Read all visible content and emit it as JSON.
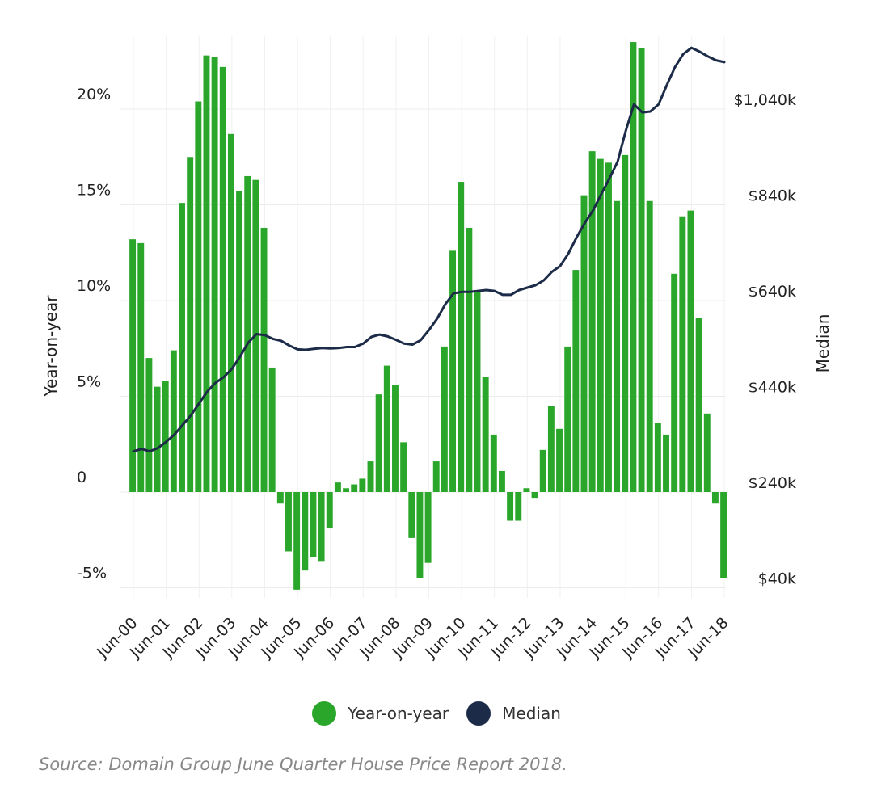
{
  "chart_data": {
    "type": "bar+line",
    "left_axis": {
      "title": "Year-on-year",
      "ticks": [
        {
          "value": 20,
          "label": "20%"
        },
        {
          "value": 15,
          "label": "15%"
        },
        {
          "value": 10,
          "label": "10%"
        },
        {
          "value": 5,
          "label": "5%"
        },
        {
          "value": 0,
          "label": "0"
        },
        {
          "value": -5,
          "label": "-5%"
        }
      ],
      "ylim": [
        -5.5,
        24
      ]
    },
    "right_axis": {
      "title": "Median",
      "ticks": [
        {
          "value": 1040,
          "label": "$1,040k"
        },
        {
          "value": 840,
          "label": "$840k"
        },
        {
          "value": 640,
          "label": "$640k"
        },
        {
          "value": 440,
          "label": "$440k"
        },
        {
          "value": 240,
          "label": "$240k"
        },
        {
          "value": 40,
          "label": "$40k"
        }
      ],
      "ylim": [
        -10,
        1172
      ]
    },
    "x_ticks": [
      "Jun-00",
      "Jun-01",
      "Jun-02",
      "Jun-03",
      "Jun-04",
      "Jun-05",
      "Jun-06",
      "Jun-07",
      "Jun-08",
      "Jun-09",
      "Jun-10",
      "Jun-11",
      "Jun-12",
      "Jun-13",
      "Jun-14",
      "Jun-15",
      "Jun-16",
      "Jun-17",
      "Jun-18"
    ],
    "series": [
      {
        "name": "Year-on-year",
        "kind": "bar",
        "color": "#2aa72a",
        "start_quarter_offset": -0.4,
        "values": [
          13.2,
          13.0,
          7.0,
          5.5,
          5.8,
          7.4,
          15.1,
          17.5,
          20.4,
          22.8,
          22.7,
          22.2,
          18.7,
          15.7,
          16.5,
          16.3,
          13.8,
          6.5,
          -0.6,
          -3.1,
          -5.1,
          -4.1,
          -3.4,
          -3.6,
          -1.9,
          0.5,
          0.2,
          0.4,
          0.7,
          1.6,
          5.1,
          6.6,
          5.6,
          2.6,
          -2.4,
          -4.5,
          -3.7,
          1.6,
          7.6,
          12.6,
          16.2,
          13.8,
          10.5,
          6.0,
          3.0,
          1.1,
          -1.5,
          -1.5,
          0.2,
          -0.3,
          2.2,
          4.5,
          3.3,
          7.6,
          11.6,
          15.5,
          17.8,
          17.4,
          17.2,
          15.2,
          17.6,
          23.5,
          23.2,
          15.2,
          3.6,
          3.0,
          11.4,
          14.4,
          14.7,
          9.1,
          4.1,
          -0.6,
          -4.5
        ]
      },
      {
        "name": "Median",
        "kind": "line",
        "color": "#1c2b48",
        "points": [
          [
            0.0,
            325
          ],
          [
            0.25,
            330
          ],
          [
            0.5,
            325
          ],
          [
            0.75,
            332
          ],
          [
            1.0,
            345
          ],
          [
            1.25,
            360
          ],
          [
            1.5,
            380
          ],
          [
            1.75,
            400
          ],
          [
            2.0,
            425
          ],
          [
            2.25,
            450
          ],
          [
            2.5,
            468
          ],
          [
            2.75,
            480
          ],
          [
            3.0,
            497
          ],
          [
            3.25,
            523
          ],
          [
            3.5,
            552
          ],
          [
            3.75,
            570
          ],
          [
            4.0,
            568
          ],
          [
            4.25,
            560
          ],
          [
            4.5,
            556
          ],
          [
            4.75,
            546
          ],
          [
            5.0,
            538
          ],
          [
            5.25,
            537
          ],
          [
            5.5,
            539
          ],
          [
            5.75,
            541
          ],
          [
            6.0,
            540
          ],
          [
            6.25,
            541
          ],
          [
            6.5,
            543
          ],
          [
            6.75,
            543
          ],
          [
            7.0,
            550
          ],
          [
            7.25,
            564
          ],
          [
            7.5,
            569
          ],
          [
            7.75,
            565
          ],
          [
            8.0,
            558
          ],
          [
            8.25,
            550
          ],
          [
            8.5,
            548
          ],
          [
            8.75,
            557
          ],
          [
            9.0,
            578
          ],
          [
            9.25,
            602
          ],
          [
            9.5,
            632
          ],
          [
            9.75,
            655
          ],
          [
            10.0,
            658
          ],
          [
            10.25,
            658
          ],
          [
            10.5,
            660
          ],
          [
            10.75,
            662
          ],
          [
            11.0,
            660
          ],
          [
            11.25,
            652
          ],
          [
            11.5,
            652
          ],
          [
            11.75,
            662
          ],
          [
            12.0,
            667
          ],
          [
            12.25,
            672
          ],
          [
            12.5,
            682
          ],
          [
            12.75,
            700
          ],
          [
            13.0,
            712
          ],
          [
            13.25,
            738
          ],
          [
            13.5,
            772
          ],
          [
            13.75,
            802
          ],
          [
            14.0,
            828
          ],
          [
            14.25,
            862
          ],
          [
            14.5,
            895
          ],
          [
            14.75,
            930
          ],
          [
            15.0,
            995
          ],
          [
            15.25,
            1050
          ],
          [
            15.5,
            1033
          ],
          [
            15.75,
            1035
          ],
          [
            16.0,
            1050
          ],
          [
            16.25,
            1090
          ],
          [
            16.5,
            1128
          ],
          [
            16.75,
            1155
          ],
          [
            17.0,
            1168
          ],
          [
            17.25,
            1160
          ],
          [
            17.5,
            1150
          ],
          [
            17.75,
            1142
          ],
          [
            18.0,
            1138
          ]
        ]
      }
    ]
  },
  "legend": {
    "items": [
      {
        "label": "Year-on-year",
        "color": "#2aa72a"
      },
      {
        "label": "Median",
        "color": "#1c2b48"
      }
    ]
  },
  "source_text": "Source: Domain Group June Quarter House Price Report 2018."
}
